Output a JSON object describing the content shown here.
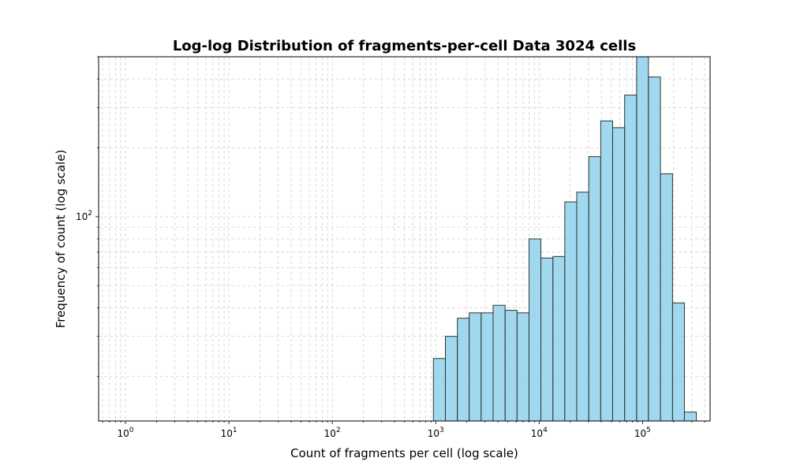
{
  "chart_data": {
    "type": "bar",
    "title": "Log-log Distribution of fragments-per-cell Data 3024 cells",
    "xlabel": "Count of fragments per cell (log scale)",
    "ylabel": "Frequency of count (log scale)",
    "x_scale": "log",
    "y_scale": "log",
    "xlim": [
      0.55,
      450000
    ],
    "ylim": [
      12.8,
      500
    ],
    "x_ticks": [
      {
        "base": "10",
        "exp": "0",
        "value": 1
      },
      {
        "base": "10",
        "exp": "1",
        "value": 10
      },
      {
        "base": "10",
        "exp": "2",
        "value": 100
      },
      {
        "base": "10",
        "exp": "3",
        "value": 1000
      },
      {
        "base": "10",
        "exp": "4",
        "value": 10000
      },
      {
        "base": "10",
        "exp": "5",
        "value": 100000
      }
    ],
    "y_ticks": [
      {
        "base": "10",
        "exp": "2",
        "value": 100
      }
    ],
    "grid": true,
    "bar_color": "#87CEEB",
    "edge_color": "#333333",
    "bins": [
      {
        "x0": 950,
        "x1": 1240,
        "count": 24
      },
      {
        "x0": 1240,
        "x1": 1620,
        "count": 30
      },
      {
        "x0": 1620,
        "x1": 2110,
        "count": 36
      },
      {
        "x0": 2110,
        "x1": 2750,
        "count": 38
      },
      {
        "x0": 2750,
        "x1": 3590,
        "count": 38
      },
      {
        "x0": 3590,
        "x1": 4690,
        "count": 41
      },
      {
        "x0": 4690,
        "x1": 6120,
        "count": 39
      },
      {
        "x0": 6120,
        "x1": 7980,
        "count": 38
      },
      {
        "x0": 7980,
        "x1": 10400,
        "count": 80
      },
      {
        "x0": 10400,
        "x1": 13600,
        "count": 66
      },
      {
        "x0": 13600,
        "x1": 17700,
        "count": 67
      },
      {
        "x0": 17700,
        "x1": 23100,
        "count": 116
      },
      {
        "x0": 23100,
        "x1": 30200,
        "count": 128
      },
      {
        "x0": 30200,
        "x1": 39400,
        "count": 183
      },
      {
        "x0": 39400,
        "x1": 51400,
        "count": 262
      },
      {
        "x0": 51400,
        "x1": 67100,
        "count": 245
      },
      {
        "x0": 67100,
        "x1": 87600,
        "count": 340
      },
      {
        "x0": 87600,
        "x1": 114000,
        "count": 523
      },
      {
        "x0": 114000,
        "x1": 149000,
        "count": 408
      },
      {
        "x0": 149000,
        "x1": 195000,
        "count": 154
      },
      {
        "x0": 195000,
        "x1": 254000,
        "count": 42
      },
      {
        "x0": 254000,
        "x1": 331000,
        "count": 14
      }
    ]
  }
}
